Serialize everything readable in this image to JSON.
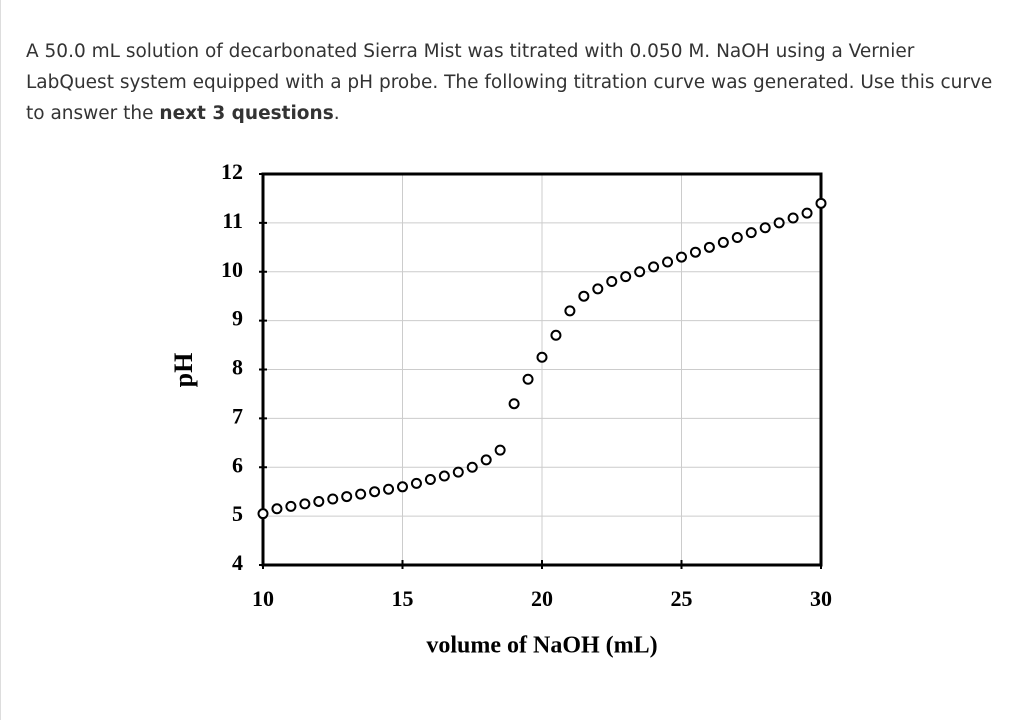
{
  "question": {
    "text": "A 50.0 mL solution of decarbonated Sierra Mist was titrated with 0.050 M. NaOH using a Vernier LabQuest system equipped with a pH probe. The following titration curve was generated. Use this curve to answer the",
    "emphasis": "next 3 questions",
    "end": "."
  },
  "chart_data": {
    "type": "scatter",
    "x_label": "volume of NaOH (mL)",
    "y_label": "pH",
    "x": [
      10,
      10.5,
      11,
      11.5,
      12,
      12.5,
      13,
      13.5,
      14,
      14.5,
      15,
      15.5,
      16,
      16.5,
      17,
      17.5,
      18,
      18.5,
      19,
      19.5,
      20,
      20.5,
      21,
      21.5,
      22,
      22.5,
      23,
      23.5,
      24,
      24.5,
      25,
      25.5,
      26,
      26.5,
      27,
      27.5,
      28,
      28.5,
      29,
      29.5,
      30
    ],
    "y": [
      5.05,
      5.15,
      5.2,
      5.25,
      5.3,
      5.35,
      5.4,
      5.45,
      5.5,
      5.55,
      5.6,
      5.67,
      5.75,
      5.82,
      5.9,
      6.0,
      6.15,
      6.35,
      7.3,
      7.8,
      8.25,
      8.7,
      9.2,
      9.5,
      9.65,
      9.8,
      9.9,
      10.0,
      10.1,
      10.2,
      10.3,
      10.4,
      10.5,
      10.6,
      10.7,
      10.8,
      10.9,
      11.0,
      11.1,
      11.2,
      11.4
    ],
    "color": "#000000",
    "xlim": [
      10,
      30
    ],
    "xticks": [
      10,
      15,
      20,
      25,
      30
    ],
    "ylim": [
      4,
      12
    ],
    "yticks": [
      4,
      5,
      6,
      7,
      8,
      9,
      10,
      11,
      12
    ],
    "grid": true
  }
}
